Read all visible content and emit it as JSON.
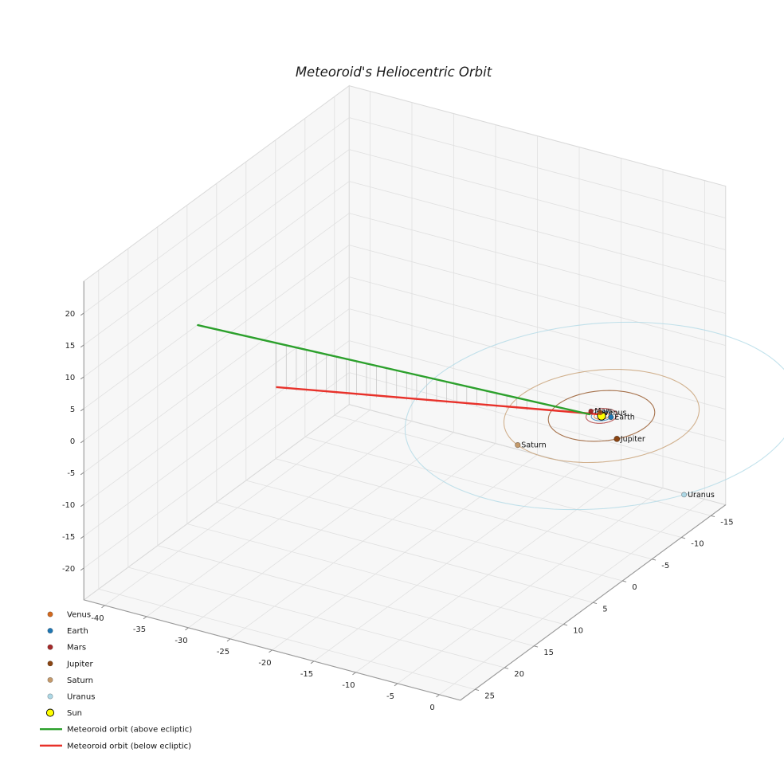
{
  "page": {
    "background": "#ffffff"
  },
  "chart_data": {
    "type": "line",
    "subtype": "3d-heliocentric-orbit-plot",
    "title": "Meteoroid's Heliocentric Orbit",
    "view": {
      "elev": 30,
      "azim": -60
    },
    "axes": {
      "x": {
        "range": [
          -42.5,
          2.5
        ],
        "ticks": [
          -40,
          -35,
          -30,
          -25,
          -20,
          -15,
          -10,
          -5,
          0
        ]
      },
      "y": {
        "range": [
          27.5,
          -17.5
        ],
        "ticks": [
          25,
          20,
          15,
          10,
          5,
          0,
          -5,
          -10,
          -15
        ]
      },
      "z": {
        "range": [
          -25,
          25
        ],
        "ticks": [
          20,
          15,
          10,
          5,
          0,
          -5,
          -10,
          -15,
          -20
        ]
      },
      "grid": true,
      "grid_color": "#e0e0e0",
      "pane_color": "#f7f7f7",
      "axis_line_color": "#9a9a9a"
    },
    "sun": {
      "label": "Sun",
      "color": "#ffff00",
      "edge_color": "#000000",
      "position": [
        0,
        0,
        0
      ],
      "marker_r": 5.2
    },
    "planets": [
      {
        "name": "Venus",
        "color": "#d2691e",
        "orbit_radius_au": 0.72,
        "angle_deg": 225,
        "marker_r": 3.0
      },
      {
        "name": "Earth",
        "color": "#1f77b4",
        "orbit_radius_au": 1.0,
        "angle_deg": -12,
        "marker_r": 3.2
      },
      {
        "name": "Mars",
        "color": "#a52a2a",
        "orbit_radius_au": 1.52,
        "angle_deg": 192,
        "marker_r": 2.9
      },
      {
        "name": "Jupiter",
        "color": "#8b4513",
        "orbit_radius_au": 5.2,
        "angle_deg": 38,
        "marker_r": 3.6
      },
      {
        "name": "Saturn",
        "color": "#c49a6b",
        "orbit_radius_au": 9.54,
        "angle_deg": 114,
        "marker_r": 3.3
      },
      {
        "name": "Uranus",
        "color": "#add8e6",
        "orbit_radius_au": 19.2,
        "angle_deg": 30,
        "marker_r": 3.1
      }
    ],
    "meteoroid": {
      "above": {
        "label": "Meteoroid orbit (above ecliptic)",
        "color": "#2ca02c",
        "start_xyz": [
          -39.4,
          12.55,
          9.0
        ],
        "end_xyz": [
          -1.09,
          0.49,
          0.2
        ]
      },
      "below": {
        "label": "Meteoroid orbit (below ecliptic)",
        "color": "#e8312a",
        "start_xyz": [
          -34.2,
          6.54,
          -3.0
        ],
        "end_xyz": [
          -0.44,
          -0.22,
          -0.05
        ]
      },
      "drop_lines": {
        "count": 26,
        "t_start": 0.2,
        "t_end": 0.84,
        "color": "#c8c8c8"
      }
    },
    "legend": {
      "position": "lower left",
      "frame": false
    }
  }
}
